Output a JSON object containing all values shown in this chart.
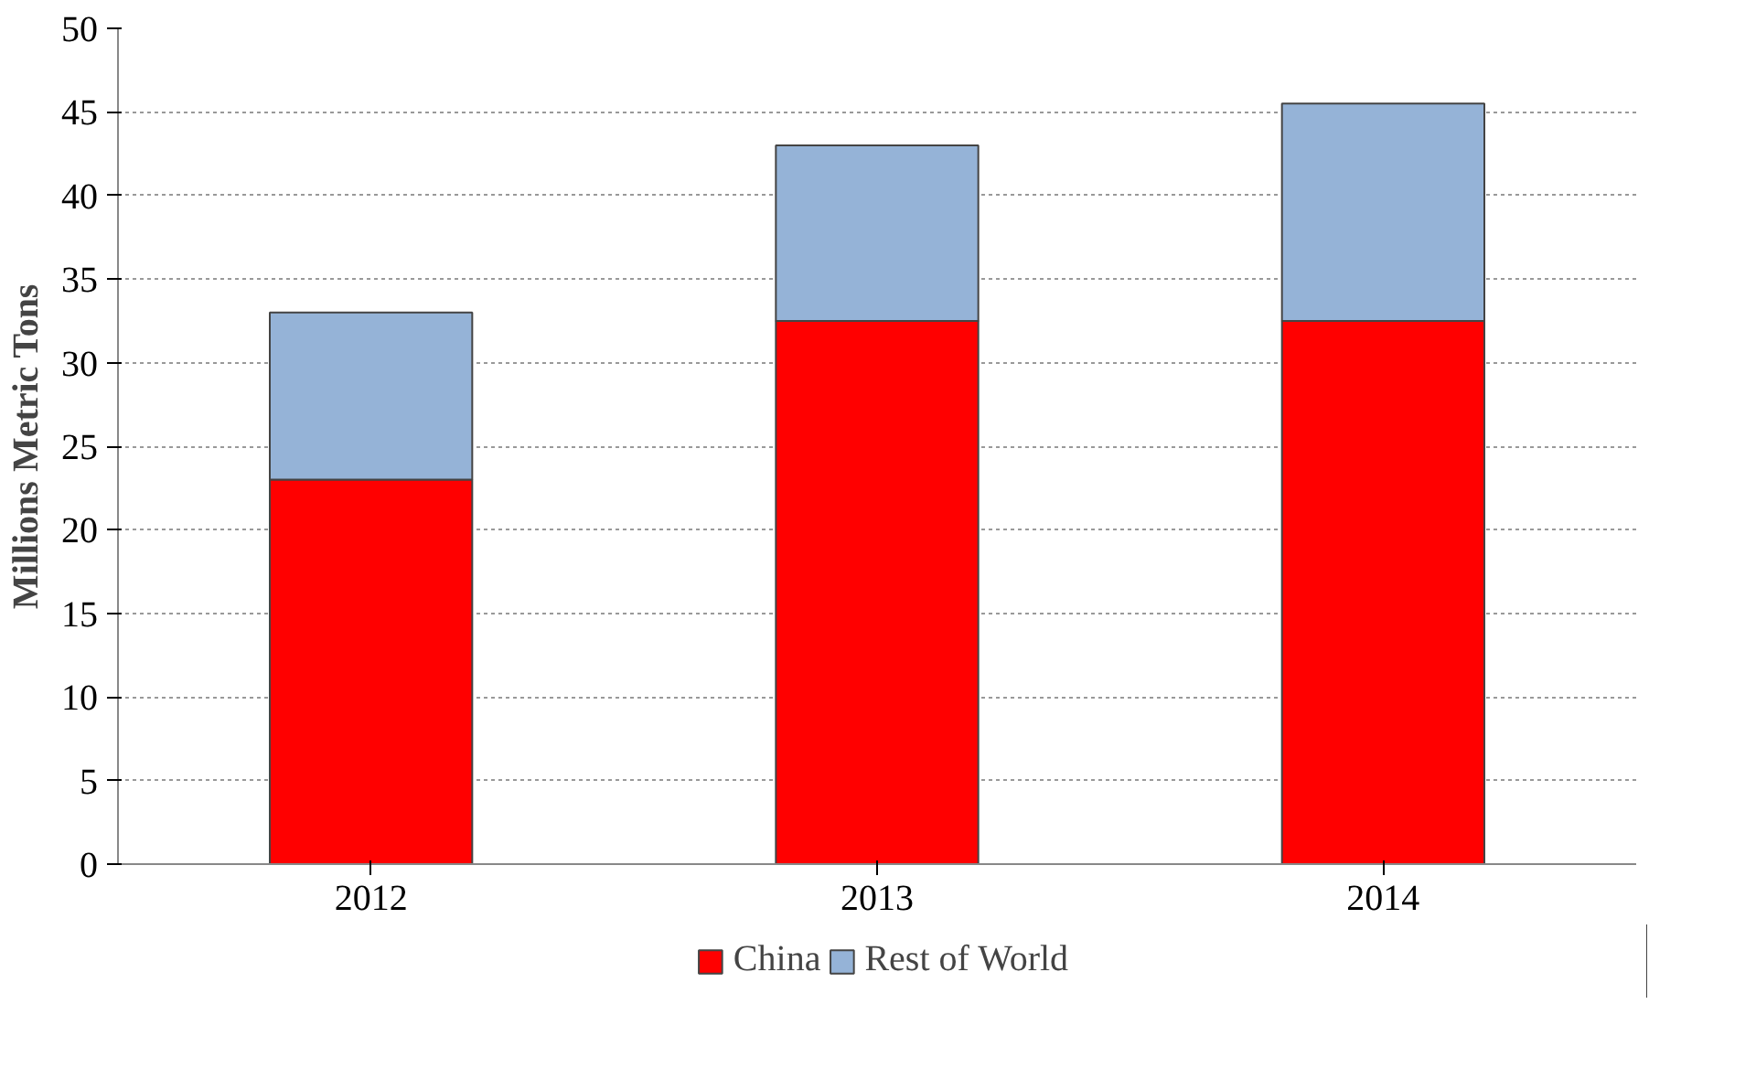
{
  "chart_data": {
    "type": "bar",
    "ylabel": "Millions Metric Tons",
    "categories": [
      "2012",
      "2013",
      "2014"
    ],
    "stacked": true,
    "series": [
      {
        "name": "China",
        "color": "#ff0000",
        "values": [
          23,
          32.5,
          32.5
        ]
      },
      {
        "name": "Rest of World",
        "color": "#95b3d7",
        "values": [
          10,
          10.5,
          13
        ]
      }
    ],
    "ylim": [
      0,
      50
    ],
    "yticks": [
      0,
      5,
      10,
      15,
      20,
      25,
      30,
      35,
      40,
      45,
      50
    ],
    "grid": "y",
    "legend": "bottom"
  }
}
